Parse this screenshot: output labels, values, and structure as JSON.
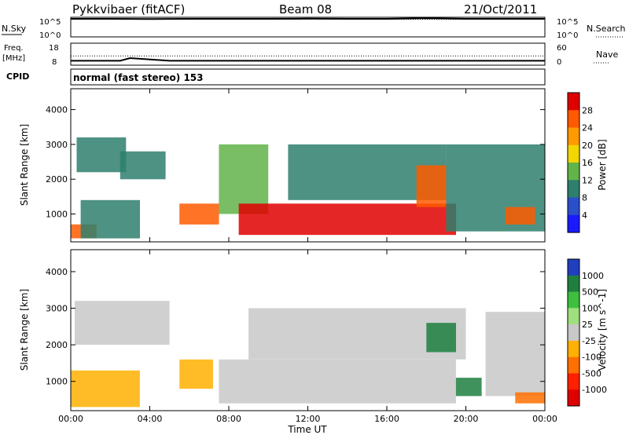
{
  "header": {
    "station": "Pykkvibaer (fitACF)",
    "beam": "Beam 08",
    "date": "21/Oct/2011",
    "cpid_label": "CPID",
    "cpid_value": "normal (fast stereo) 153"
  },
  "chart_data": [
    {
      "type": "line",
      "panel": "noise",
      "left_label": "N.Sky",
      "right_label": "N.Search",
      "left_ticks": [
        "10^5",
        "10^0"
      ],
      "right_ticks": [
        "10^5",
        "10^0"
      ],
      "xlim": [
        0,
        24
      ],
      "series": [
        {
          "name": "N.Sky",
          "x": [
            0,
            2,
            4,
            6,
            8,
            10,
            12,
            14,
            16,
            18,
            20,
            22,
            24
          ],
          "y": [
            4.6,
            4.6,
            4.55,
            4.6,
            4.6,
            4.6,
            4.65,
            4.6,
            4.6,
            4.75,
            4.6,
            4.6,
            4.6
          ]
        },
        {
          "name": "N.Search",
          "x": [
            0,
            2,
            4,
            6,
            8,
            10,
            12,
            14,
            16,
            18,
            20,
            22,
            24
          ],
          "y": [
            4.5,
            4.5,
            4.5,
            4.5,
            4.5,
            4.5,
            4.5,
            4.5,
            4.5,
            4.5,
            4.5,
            4.5,
            4.5
          ]
        }
      ]
    },
    {
      "type": "line",
      "panel": "frequency",
      "left_label_1": "Freq.",
      "left_label_2": "[MHz]",
      "right_label": "Nave",
      "left_ticks": [
        "18",
        "8"
      ],
      "right_ticks": [
        "60",
        "0"
      ],
      "ylim_left": [
        8,
        18
      ],
      "ylim_right": [
        0,
        60
      ],
      "xlim": [
        0,
        24
      ],
      "series": [
        {
          "name": "Freq.",
          "x": [
            0,
            2.5,
            3,
            5,
            10.5,
            12,
            24
          ],
          "y": [
            10,
            10,
            11.2,
            10,
            10,
            10,
            10
          ]
        },
        {
          "name": "Nave",
          "x": [
            0,
            24
          ],
          "y": [
            25,
            25
          ]
        }
      ]
    },
    {
      "type": "heatmap",
      "panel": "power",
      "ylabel": "Slant Range [km]",
      "yticks": [
        "4000",
        "3000",
        "2000",
        "1000"
      ],
      "ylim": [
        200,
        4600
      ],
      "xlim": [
        0,
        24
      ],
      "colorbar_label": "Power [dB]",
      "colorbar_ticks": [
        "28",
        "24",
        "20",
        "16",
        "12",
        "8",
        "4"
      ],
      "colorbar_colors": [
        "#e00000",
        "#ff5a00",
        "#ff9a00",
        "#f2d600",
        "#62b34a",
        "#2e7f6d",
        "#2a4fc8",
        "#1a1aff"
      ],
      "regions": [
        {
          "t": [
            0,
            1.3
          ],
          "r": [
            300,
            700
          ],
          "value": 24
        },
        {
          "t": [
            0.5,
            3.5
          ],
          "r": [
            300,
            1400
          ],
          "value": 10
        },
        {
          "t": [
            0.3,
            2.8
          ],
          "r": [
            2200,
            3200
          ],
          "value": 8
        },
        {
          "t": [
            2.5,
            4.8
          ],
          "r": [
            2000,
            2800
          ],
          "value": 8
        },
        {
          "t": [
            5.5,
            7.5
          ],
          "r": [
            700,
            1300
          ],
          "value": 24
        },
        {
          "t": [
            7.5,
            10
          ],
          "r": [
            1000,
            3000
          ],
          "value": 14
        },
        {
          "t": [
            8.5,
            19.5
          ],
          "r": [
            400,
            1300
          ],
          "value": 28
        },
        {
          "t": [
            11,
            19
          ],
          "r": [
            1400,
            3000
          ],
          "value": 10
        },
        {
          "t": [
            17.5,
            19
          ],
          "r": [
            1200,
            2400
          ],
          "value": 24
        },
        {
          "t": [
            19,
            24
          ],
          "r": [
            500,
            3000
          ],
          "value": 10
        },
        {
          "t": [
            22,
            23.5
          ],
          "r": [
            700,
            1200
          ],
          "value": 26
        }
      ]
    },
    {
      "type": "heatmap",
      "panel": "velocity",
      "ylabel": "Slant Range [km]",
      "yticks": [
        "4000",
        "3000",
        "2000",
        "1000"
      ],
      "ylim": [
        200,
        4600
      ],
      "xlim": [
        0,
        24
      ],
      "xlabel": "Time UT",
      "xticks": [
        "00:00",
        "04:00",
        "08:00",
        "12:00",
        "16:00",
        "20:00",
        "00:00"
      ],
      "colorbar_label": "Velocity [m s^-1]",
      "colorbar_ticks": [
        "1000",
        "500",
        "100",
        "25",
        "-25",
        "-100",
        "-500",
        "-1000"
      ],
      "colorbar_colors": [
        "#1f3fbf",
        "#1f7f3f",
        "#3fbf3f",
        "#9fdf7f",
        "#c8c8c8",
        "#ffb000",
        "#ff7000",
        "#ff2000",
        "#e00000"
      ],
      "regions": [
        {
          "t": [
            0,
            3.5
          ],
          "r": [
            300,
            1300
          ],
          "value": -100
        },
        {
          "t": [
            0.2,
            5
          ],
          "r": [
            2000,
            3200
          ],
          "value": 0
        },
        {
          "t": [
            5.5,
            7.2
          ],
          "r": [
            800,
            1600
          ],
          "value": -100
        },
        {
          "t": [
            7.5,
            19.5
          ],
          "r": [
            400,
            1600
          ],
          "value": 0
        },
        {
          "t": [
            9,
            20
          ],
          "r": [
            1600,
            3000
          ],
          "value": 0
        },
        {
          "t": [
            19.5,
            20.8
          ],
          "r": [
            600,
            1100
          ],
          "value": 800
        },
        {
          "t": [
            18,
            19.5
          ],
          "r": [
            1800,
            2600
          ],
          "value": 800
        },
        {
          "t": [
            21,
            24
          ],
          "r": [
            600,
            2900
          ],
          "value": 0
        },
        {
          "t": [
            22.5,
            24
          ],
          "r": [
            400,
            700
          ],
          "value": -300
        }
      ]
    }
  ]
}
